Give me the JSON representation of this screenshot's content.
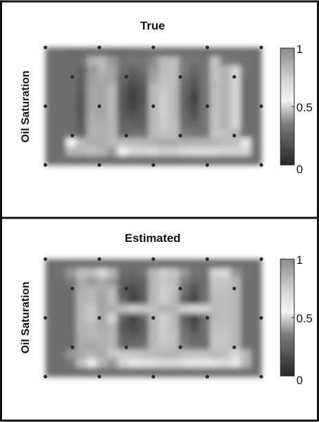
{
  "figure": {
    "panels": [
      {
        "title": "True",
        "ylabel": "Oil Saturation",
        "colorbar_ticks": [
          "1",
          "0.5",
          "0"
        ]
      },
      {
        "title": "Estimated",
        "ylabel": "Oil Saturation",
        "colorbar_ticks": [
          "1",
          "0.5",
          "0"
        ]
      }
    ]
  },
  "chart_data": [
    {
      "type": "heatmap",
      "title": "True",
      "ylabel": "Oil Saturation",
      "colorbar": {
        "min": 0,
        "max": 1,
        "ticks": [
          0,
          0.5,
          1
        ],
        "colormap": "gray"
      },
      "x": [
        0,
        1,
        2,
        3,
        4,
        5,
        6,
        7,
        8,
        9,
        10,
        11,
        12,
        13,
        14,
        15,
        16,
        17,
        18,
        19,
        20
      ],
      "y": [
        0,
        1,
        2,
        3,
        4,
        5,
        6,
        7,
        8,
        9,
        10,
        11,
        12
      ],
      "values": [
        [
          0.3,
          0.3,
          0.28,
          0.28,
          0.29,
          0.29,
          0.28,
          0.28,
          0.29,
          0.29,
          0.3,
          0.3,
          0.29,
          0.29,
          0.29,
          0.3,
          0.3,
          0.3,
          0.3,
          0.3,
          0.3
        ],
        [
          0.3,
          0.3,
          0.3,
          0.3,
          0.85,
          0.82,
          0.4,
          0.32,
          0.33,
          0.32,
          0.38,
          0.82,
          0.8,
          0.35,
          0.33,
          0.33,
          0.78,
          0.35,
          0.33,
          0.32,
          0.3
        ],
        [
          0.3,
          0.3,
          0.3,
          0.25,
          0.95,
          0.85,
          0.42,
          0.3,
          0.25,
          0.3,
          0.4,
          0.82,
          0.8,
          0.35,
          0.28,
          0.33,
          0.8,
          0.85,
          0.5,
          0.32,
          0.3
        ],
        [
          0.3,
          0.3,
          0.3,
          0.23,
          0.92,
          0.88,
          0.42,
          0.25,
          0.2,
          0.25,
          0.42,
          0.8,
          0.8,
          0.3,
          0.22,
          0.33,
          0.8,
          0.85,
          0.5,
          0.3,
          0.3
        ],
        [
          0.3,
          0.3,
          0.3,
          0.22,
          0.9,
          0.9,
          0.45,
          0.22,
          0.15,
          0.2,
          0.45,
          0.78,
          0.82,
          0.28,
          0.18,
          0.33,
          0.82,
          0.85,
          0.5,
          0.3,
          0.3
        ],
        [
          0.3,
          0.3,
          0.3,
          0.2,
          0.9,
          0.9,
          0.45,
          0.2,
          0.1,
          0.2,
          0.45,
          0.75,
          0.82,
          0.25,
          0.12,
          0.33,
          0.82,
          0.85,
          0.5,
          0.3,
          0.3
        ],
        [
          0.3,
          0.3,
          0.3,
          0.2,
          0.9,
          0.9,
          0.45,
          0.2,
          0.12,
          0.2,
          0.45,
          0.75,
          0.82,
          0.25,
          0.15,
          0.33,
          0.82,
          0.85,
          0.5,
          0.3,
          0.3
        ],
        [
          0.3,
          0.3,
          0.3,
          0.2,
          0.88,
          0.9,
          0.45,
          0.22,
          0.18,
          0.22,
          0.45,
          0.75,
          0.82,
          0.28,
          0.2,
          0.33,
          0.8,
          0.85,
          0.5,
          0.3,
          0.3
        ],
        [
          0.3,
          0.3,
          0.3,
          0.22,
          0.86,
          0.88,
          0.45,
          0.25,
          0.25,
          0.25,
          0.45,
          0.76,
          0.8,
          0.3,
          0.28,
          0.33,
          0.8,
          0.85,
          0.5,
          0.3,
          0.3
        ],
        [
          0.3,
          0.3,
          0.3,
          0.25,
          0.86,
          0.86,
          0.45,
          0.28,
          0.3,
          0.3,
          0.45,
          0.78,
          0.8,
          0.35,
          0.32,
          0.33,
          0.78,
          0.8,
          0.45,
          0.3,
          0.3
        ],
        [
          0.3,
          0.3,
          0.55,
          0.82,
          0.88,
          0.88,
          0.82,
          0.82,
          0.82,
          0.84,
          0.86,
          0.88,
          0.88,
          0.86,
          0.85,
          0.85,
          0.85,
          0.82,
          0.8,
          0.6,
          0.3
        ],
        [
          0.3,
          0.3,
          0.45,
          0.84,
          0.8,
          0.45,
          0.4,
          0.55,
          0.7,
          0.72,
          0.7,
          0.75,
          0.75,
          0.7,
          0.68,
          0.68,
          0.7,
          0.72,
          0.72,
          0.5,
          0.3
        ],
        [
          0.3,
          0.3,
          0.3,
          0.3,
          0.3,
          0.3,
          0.3,
          0.3,
          0.3,
          0.3,
          0.3,
          0.3,
          0.3,
          0.3,
          0.3,
          0.3,
          0.3,
          0.3,
          0.3,
          0.3,
          0.3
        ]
      ]
    },
    {
      "type": "heatmap",
      "title": "Estimated",
      "ylabel": "Oil Saturation",
      "colorbar": {
        "min": 0,
        "max": 1,
        "ticks": [
          0,
          0.5,
          1
        ],
        "colormap": "gray"
      },
      "x": [
        0,
        1,
        2,
        3,
        4,
        5,
        6,
        7,
        8,
        9,
        10,
        11,
        12,
        13,
        14,
        15,
        16,
        17,
        18,
        19,
        20
      ],
      "y": [
        0,
        1,
        2,
        3,
        4,
        5,
        6,
        7,
        8,
        9,
        10,
        11,
        12
      ],
      "values": [
        [
          0.3,
          0.3,
          0.3,
          0.3,
          0.3,
          0.3,
          0.3,
          0.3,
          0.3,
          0.3,
          0.3,
          0.3,
          0.3,
          0.3,
          0.3,
          0.3,
          0.3,
          0.3,
          0.3,
          0.3,
          0.3
        ],
        [
          0.3,
          0.32,
          0.4,
          0.8,
          0.82,
          0.7,
          0.45,
          0.3,
          0.28,
          0.32,
          0.45,
          0.75,
          0.78,
          0.4,
          0.32,
          0.32,
          0.72,
          0.7,
          0.4,
          0.32,
          0.3
        ],
        [
          0.3,
          0.3,
          0.35,
          0.88,
          0.4,
          0.88,
          0.4,
          0.25,
          0.22,
          0.25,
          0.45,
          0.78,
          0.8,
          0.35,
          0.25,
          0.3,
          0.78,
          0.78,
          0.45,
          0.3,
          0.3
        ],
        [
          0.3,
          0.3,
          0.3,
          0.86,
          0.45,
          0.88,
          0.45,
          0.2,
          0.15,
          0.22,
          0.45,
          0.75,
          0.8,
          0.3,
          0.18,
          0.3,
          0.8,
          0.8,
          0.45,
          0.3,
          0.3
        ],
        [
          0.3,
          0.3,
          0.3,
          0.84,
          0.45,
          0.92,
          0.8,
          0.28,
          0.12,
          0.2,
          0.45,
          0.75,
          0.82,
          0.25,
          0.12,
          0.3,
          0.82,
          0.82,
          0.45,
          0.3,
          0.3
        ],
        [
          0.3,
          0.3,
          0.3,
          0.84,
          0.48,
          0.9,
          0.88,
          0.82,
          0.75,
          0.78,
          0.8,
          0.85,
          0.85,
          0.75,
          0.7,
          0.72,
          0.82,
          0.82,
          0.45,
          0.3,
          0.3
        ],
        [
          0.3,
          0.3,
          0.3,
          0.84,
          0.48,
          0.9,
          0.5,
          0.25,
          0.12,
          0.25,
          0.45,
          0.75,
          0.82,
          0.25,
          0.12,
          0.3,
          0.82,
          0.82,
          0.45,
          0.3,
          0.3
        ],
        [
          0.3,
          0.3,
          0.3,
          0.84,
          0.45,
          0.88,
          0.45,
          0.2,
          0.15,
          0.22,
          0.45,
          0.75,
          0.82,
          0.28,
          0.18,
          0.3,
          0.8,
          0.8,
          0.45,
          0.3,
          0.3
        ],
        [
          0.3,
          0.3,
          0.3,
          0.86,
          0.45,
          0.86,
          0.45,
          0.25,
          0.22,
          0.25,
          0.45,
          0.76,
          0.8,
          0.32,
          0.25,
          0.3,
          0.78,
          0.78,
          0.45,
          0.3,
          0.3
        ],
        [
          0.3,
          0.3,
          0.3,
          0.88,
          0.42,
          0.86,
          0.45,
          0.28,
          0.28,
          0.3,
          0.45,
          0.78,
          0.8,
          0.35,
          0.3,
          0.3,
          0.78,
          0.78,
          0.45,
          0.3,
          0.3
        ],
        [
          0.3,
          0.3,
          0.4,
          0.88,
          0.85,
          0.88,
          0.78,
          0.75,
          0.78,
          0.8,
          0.82,
          0.85,
          0.85,
          0.8,
          0.8,
          0.8,
          0.82,
          0.8,
          0.7,
          0.45,
          0.3
        ],
        [
          0.3,
          0.3,
          0.35,
          0.8,
          0.6,
          0.45,
          0.4,
          0.5,
          0.62,
          0.65,
          0.65,
          0.7,
          0.7,
          0.65,
          0.62,
          0.62,
          0.65,
          0.68,
          0.62,
          0.45,
          0.3
        ],
        [
          0.3,
          0.3,
          0.3,
          0.3,
          0.3,
          0.3,
          0.3,
          0.3,
          0.3,
          0.3,
          0.3,
          0.3,
          0.3,
          0.3,
          0.3,
          0.3,
          0.3,
          0.3,
          0.3,
          0.3,
          0.3
        ]
      ]
    }
  ]
}
